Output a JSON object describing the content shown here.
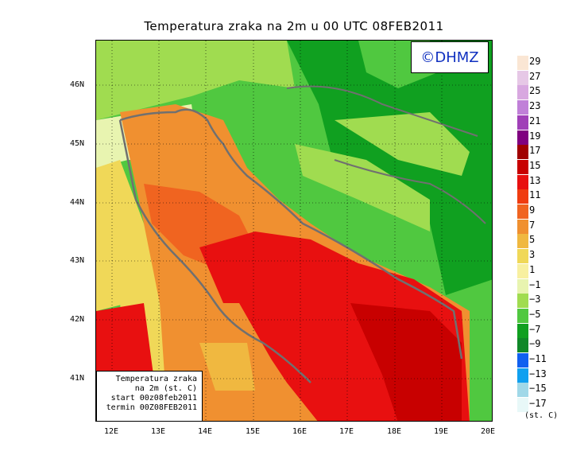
{
  "title": "Temperatura zraka na 2m u 00 UTC 08FEB2011",
  "logo": "©DHMZ",
  "infobox": {
    "line1": "Temperatura zraka",
    "line2": "na 2m (st. C)",
    "line3": "start 00z08feb2011",
    "line4": "termin 00Z08FEB2011"
  },
  "lat_labels": [
    "46N",
    "45N",
    "44N",
    "43N",
    "42N",
    "41N"
  ],
  "lon_labels": [
    "12E",
    "13E",
    "14E",
    "15E",
    "16E",
    "17E",
    "18E",
    "19E",
    "20E"
  ],
  "legend": {
    "labels": [
      "29",
      "27",
      "25",
      "23",
      "21",
      "19",
      "17",
      "15",
      "13",
      "11",
      "9",
      "7",
      "5",
      "3",
      "1",
      "−1",
      "−3",
      "−5",
      "−7",
      "−9",
      "−11",
      "−13",
      "−15",
      "−17"
    ],
    "colors": [
      "#fae6d4",
      "#e6c8e6",
      "#d8a8e0",
      "#c080d8",
      "#a040b8",
      "#800080",
      "#a00000",
      "#c80000",
      "#e81010",
      "#f03c10",
      "#f06420",
      "#f09030",
      "#f0b840",
      "#f0d858",
      "#f8f0a0",
      "#e8f4b0",
      "#a0dc50",
      "#50c840",
      "#10a020",
      "#108828",
      "#1060f0",
      "#10a0f0",
      "#a0d8e8",
      "#e8f8f8"
    ],
    "unit": "(st. C)"
  }
}
